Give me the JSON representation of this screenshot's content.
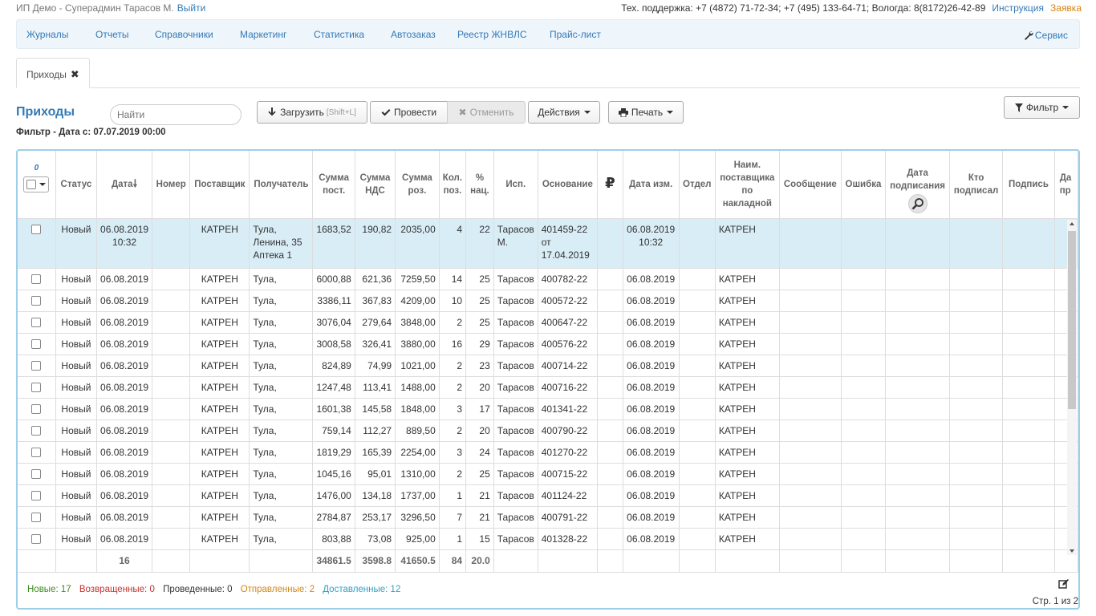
{
  "topbar": {
    "user": "ИП Демо - Суперадмин Тарасов М.",
    "logout": "Выйти",
    "support": "Тех. поддержка: +7 (4872) 71-72-34; +7 (495) 133-64-71; Вологда: 8(8172)26-42-89",
    "instruction": "Инструкция",
    "request": "Заявка"
  },
  "nav": {
    "items": [
      "Журналы",
      "Отчеты",
      "Справочники",
      "Маркетинг",
      "Статистика",
      "Автозаказ",
      "Реестр ЖНВЛС",
      "Прайс-лист"
    ],
    "service": "Сервис"
  },
  "tab": {
    "label": "Приходы"
  },
  "page": {
    "title": "Приходы",
    "search_placeholder": "Найти",
    "filter": "Фильтр - Дата с: 07.07.2019 00:00"
  },
  "toolbar": {
    "load": "Загрузить",
    "load_hint": "[Shift+L]",
    "conduct": "Провести",
    "cancel": "Отменить",
    "actions": "Действия",
    "print": "Печать",
    "filter": "Фильтр"
  },
  "table": {
    "select_count": "0",
    "headers": {
      "status": "Статус",
      "date": "Дата",
      "number": "Номер",
      "supplier": "Поставщик",
      "recipient": "Получатель",
      "sum_in": "Сумма пост.",
      "vat": "Сумма НДС",
      "sum_retail": "Сумма роз.",
      "qty": "Кол. поз.",
      "markup": "% нац.",
      "executor": "Исп.",
      "basis": "Основание",
      "ruble": "₽",
      "date_mod": "Дата изм.",
      "dept": "Отдел",
      "supplier_name": "Наим. поставщика по накладной",
      "message": "Сообщение",
      "error": "Ошибка",
      "sign_date": "Дата подписания",
      "signed_by": "Кто подписал",
      "signature": "Подпись",
      "extra": "Да пр"
    },
    "rows": [
      {
        "status": "Новый",
        "date": "06.08.2019 10:32",
        "number": "",
        "supplier": "КАТРЕН",
        "recipient": "Тула, Ленина, 35 Аптека 1",
        "sum_in": "1683,52",
        "vat": "190,82",
        "sum_retail": "2035,00",
        "qty": "4",
        "markup": "22",
        "executor": "Тарасов М.",
        "basis": "401459-22 от 17.04.2019",
        "date_mod": "06.08.2019 10:32",
        "supplier_name": "КАТРЕН"
      },
      {
        "status": "Новый",
        "date": "06.08.2019",
        "number": "",
        "supplier": "КАТРЕН",
        "recipient": "Тула,",
        "sum_in": "6000,88",
        "vat": "621,36",
        "sum_retail": "7259,50",
        "qty": "14",
        "markup": "25",
        "executor": "Тарасов",
        "basis": "400782-22",
        "date_mod": "06.08.2019",
        "supplier_name": "КАТРЕН"
      },
      {
        "status": "Новый",
        "date": "06.08.2019",
        "number": "",
        "supplier": "КАТРЕН",
        "recipient": "Тула,",
        "sum_in": "3386,11",
        "vat": "367,83",
        "sum_retail": "4209,00",
        "qty": "10",
        "markup": "25",
        "executor": "Тарасов",
        "basis": "400572-22",
        "date_mod": "06.08.2019",
        "supplier_name": "КАТРЕН"
      },
      {
        "status": "Новый",
        "date": "06.08.2019",
        "number": "",
        "supplier": "КАТРЕН",
        "recipient": "Тула,",
        "sum_in": "3076,04",
        "vat": "279,64",
        "sum_retail": "3848,00",
        "qty": "2",
        "markup": "25",
        "executor": "Тарасов",
        "basis": "400647-22",
        "date_mod": "06.08.2019",
        "supplier_name": "КАТРЕН"
      },
      {
        "status": "Новый",
        "date": "06.08.2019",
        "number": "",
        "supplier": "КАТРЕН",
        "recipient": "Тула,",
        "sum_in": "3008,58",
        "vat": "326,41",
        "sum_retail": "3880,00",
        "qty": "16",
        "markup": "29",
        "executor": "Тарасов",
        "basis": "400576-22",
        "date_mod": "06.08.2019",
        "supplier_name": "КАТРЕН"
      },
      {
        "status": "Новый",
        "date": "06.08.2019",
        "number": "",
        "supplier": "КАТРЕН",
        "recipient": "Тула,",
        "sum_in": "824,89",
        "vat": "74,99",
        "sum_retail": "1021,00",
        "qty": "2",
        "markup": "23",
        "executor": "Тарасов",
        "basis": "400714-22",
        "date_mod": "06.08.2019",
        "supplier_name": "КАТРЕН"
      },
      {
        "status": "Новый",
        "date": "06.08.2019",
        "number": "",
        "supplier": "КАТРЕН",
        "recipient": "Тула,",
        "sum_in": "1247,48",
        "vat": "113,41",
        "sum_retail": "1488,00",
        "qty": "2",
        "markup": "20",
        "executor": "Тарасов",
        "basis": "400716-22",
        "date_mod": "06.08.2019",
        "supplier_name": "КАТРЕН"
      },
      {
        "status": "Новый",
        "date": "06.08.2019",
        "number": "",
        "supplier": "КАТРЕН",
        "recipient": "Тула,",
        "sum_in": "1601,38",
        "vat": "145,58",
        "sum_retail": "1848,00",
        "qty": "3",
        "markup": "17",
        "executor": "Тарасов",
        "basis": "401341-22",
        "date_mod": "06.08.2019",
        "supplier_name": "КАТРЕН"
      },
      {
        "status": "Новый",
        "date": "06.08.2019",
        "number": "",
        "supplier": "КАТРЕН",
        "recipient": "Тула,",
        "sum_in": "759,14",
        "vat": "112,27",
        "sum_retail": "889,50",
        "qty": "2",
        "markup": "20",
        "executor": "Тарасов",
        "basis": "400790-22",
        "date_mod": "06.08.2019",
        "supplier_name": "КАТРЕН"
      },
      {
        "status": "Новый",
        "date": "06.08.2019",
        "number": "",
        "supplier": "КАТРЕН",
        "recipient": "Тула,",
        "sum_in": "1819,29",
        "vat": "165,39",
        "sum_retail": "2254,00",
        "qty": "3",
        "markup": "24",
        "executor": "Тарасов",
        "basis": "401270-22",
        "date_mod": "06.08.2019",
        "supplier_name": "КАТРЕН"
      },
      {
        "status": "Новый",
        "date": "06.08.2019",
        "number": "",
        "supplier": "КАТРЕН",
        "recipient": "Тула,",
        "sum_in": "1045,16",
        "vat": "95,01",
        "sum_retail": "1310,00",
        "qty": "2",
        "markup": "25",
        "executor": "Тарасов",
        "basis": "400715-22",
        "date_mod": "06.08.2019",
        "supplier_name": "КАТРЕН"
      },
      {
        "status": "Новый",
        "date": "06.08.2019",
        "number": "",
        "supplier": "КАТРЕН",
        "recipient": "Тула,",
        "sum_in": "1476,00",
        "vat": "134,18",
        "sum_retail": "1737,00",
        "qty": "1",
        "markup": "21",
        "executor": "Тарасов",
        "basis": "401124-22",
        "date_mod": "06.08.2019",
        "supplier_name": "КАТРЕН"
      },
      {
        "status": "Новый",
        "date": "06.08.2019",
        "number": "",
        "supplier": "КАТРЕН",
        "recipient": "Тула,",
        "sum_in": "2784,87",
        "vat": "253,17",
        "sum_retail": "3296,50",
        "qty": "7",
        "markup": "21",
        "executor": "Тарасов",
        "basis": "400791-22",
        "date_mod": "06.08.2019",
        "supplier_name": "КАТРЕН"
      },
      {
        "status": "Новый",
        "date": "06.08.2019",
        "number": "",
        "supplier": "КАТРЕН",
        "recipient": "Тула,",
        "sum_in": "803,88",
        "vat": "73,08",
        "sum_retail": "925,00",
        "qty": "1",
        "markup": "15",
        "executor": "Тарасов",
        "basis": "401328-22",
        "date_mod": "06.08.2019",
        "supplier_name": "КАТРЕН"
      }
    ],
    "footer": {
      "count": "16",
      "sum_in": "34861.5",
      "vat": "3598.8",
      "sum_retail": "41650.5",
      "qty": "84",
      "markup": "20.0"
    }
  },
  "stats": {
    "new": "Новые: 17",
    "returned": "Возвращенные: 0",
    "conducted": "Проведенные: 0",
    "sent": "Отправленные: 2",
    "delivered": "Доставленные: 12",
    "page": "Стр. 1 из 2"
  },
  "colors": {
    "accent": "#337ab7",
    "grid_border": "#9fcfe8",
    "selected_row": "#d9edf7",
    "new": "#3c8c1e",
    "returned": "#c9302c",
    "sent": "#d58512",
    "delivered": "#31a0c5"
  }
}
